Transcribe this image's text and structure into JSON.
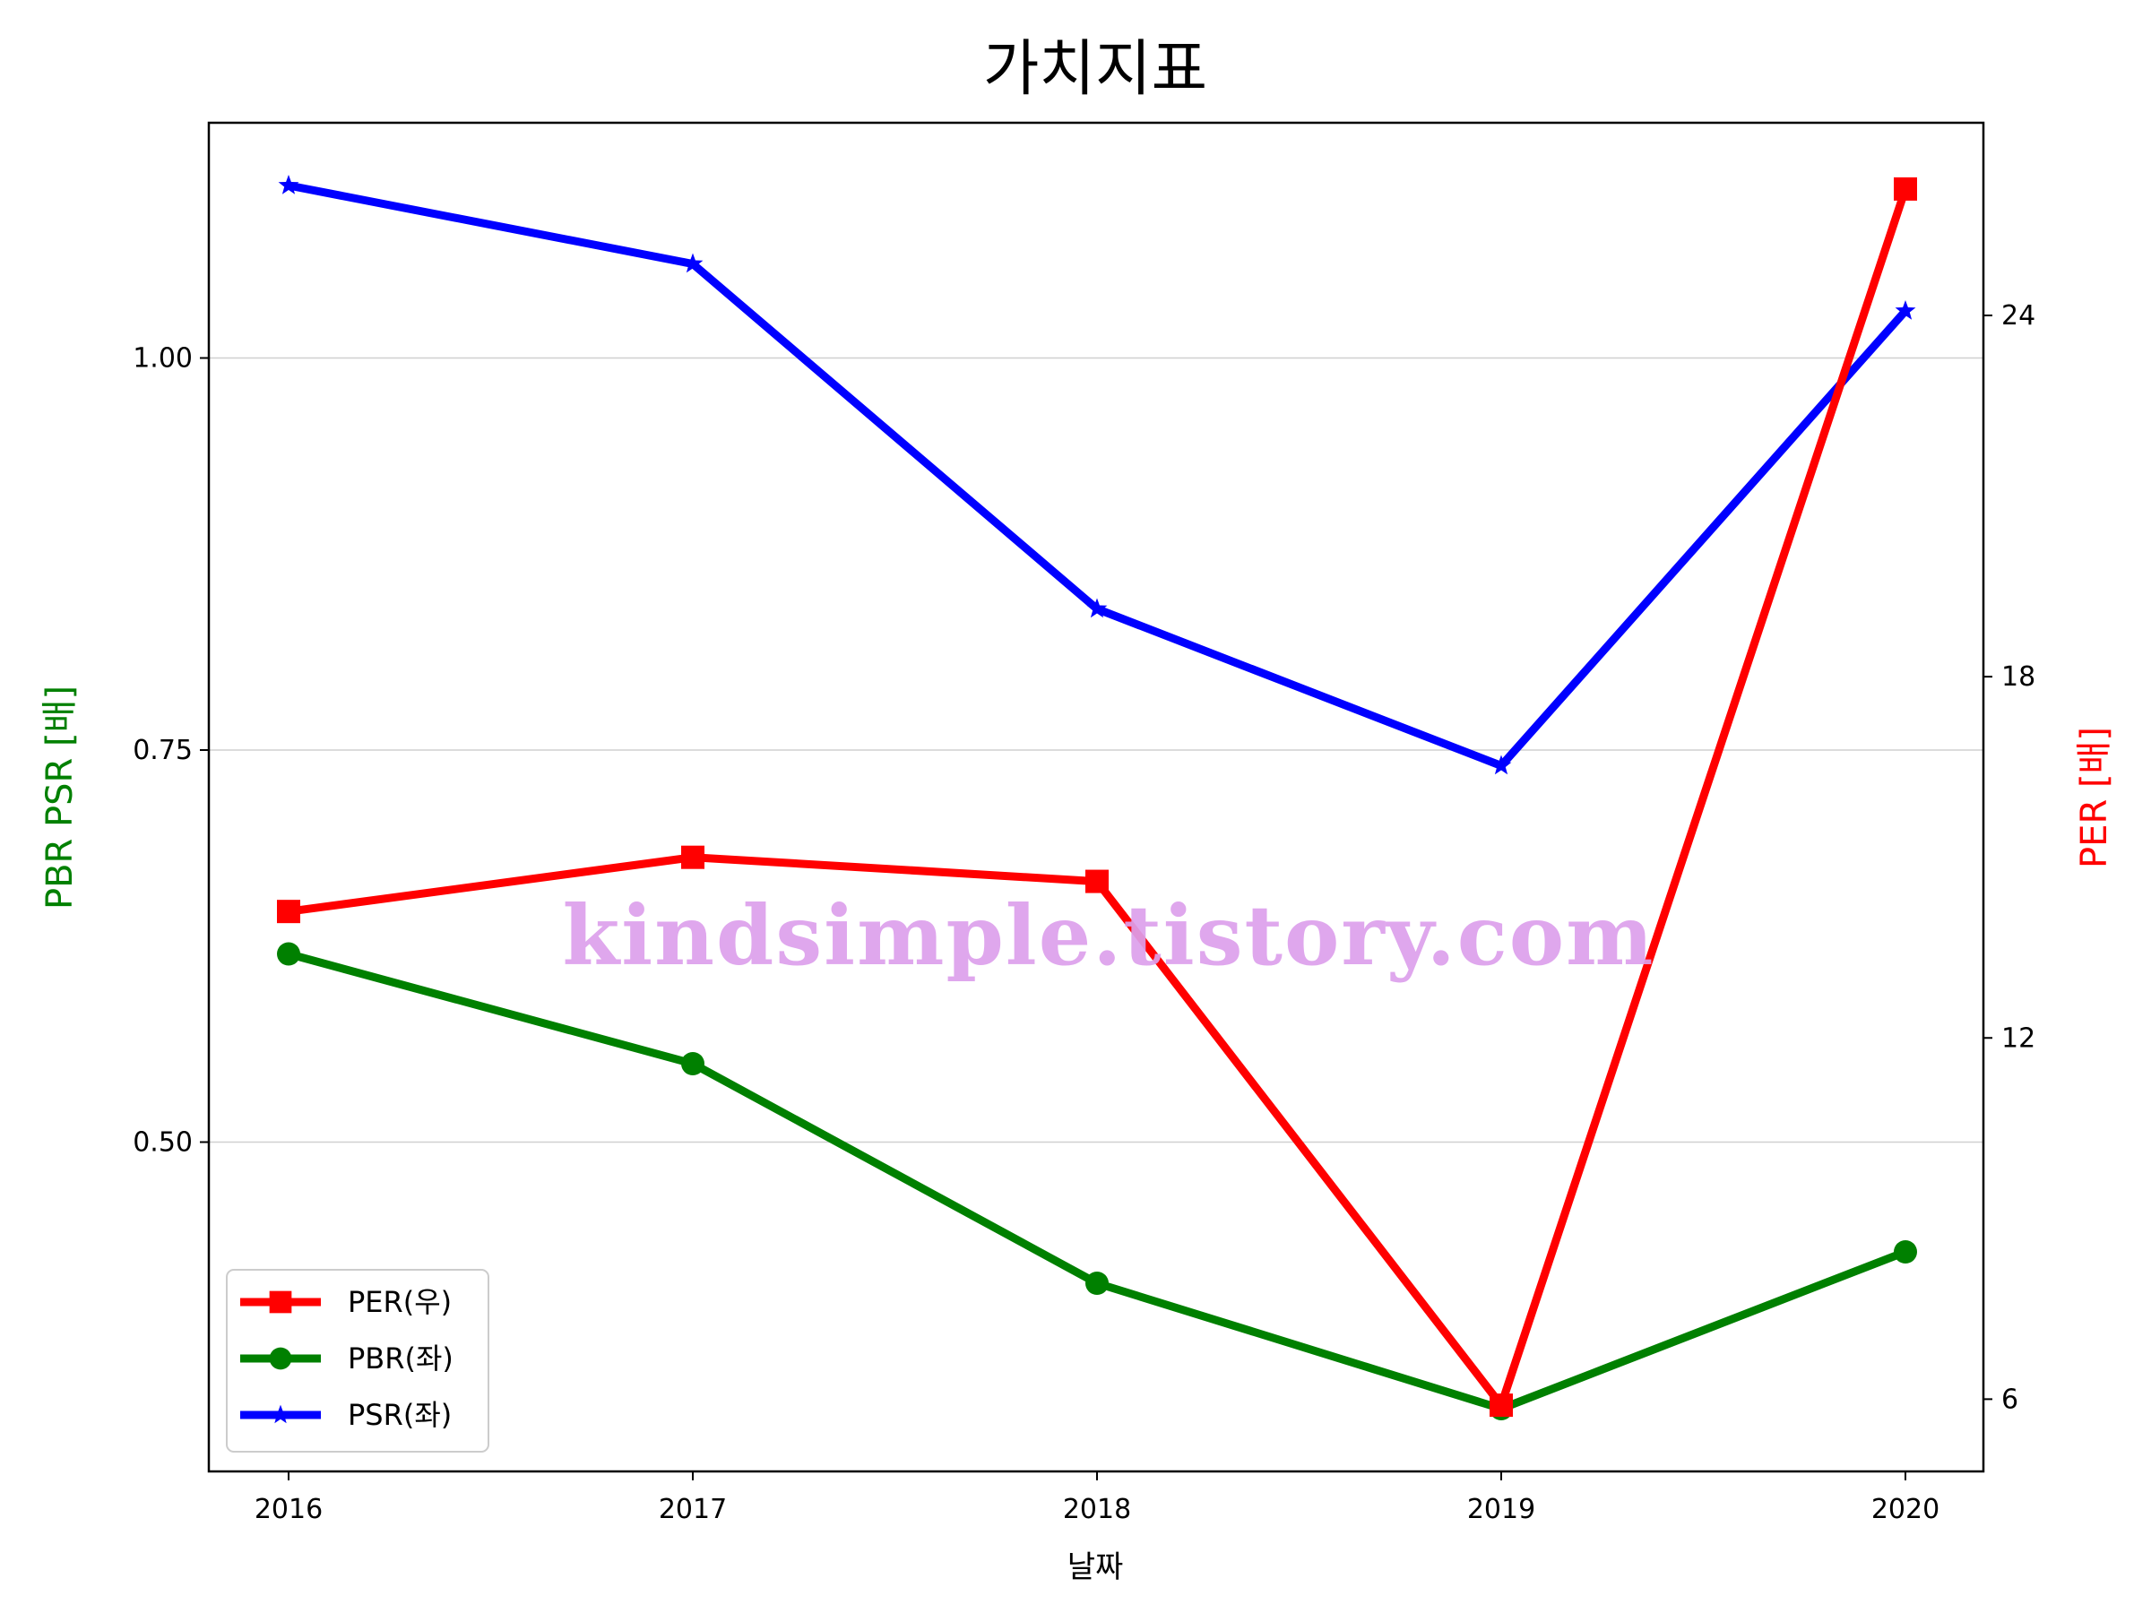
{
  "chart_data": {
    "type": "line",
    "title": "가치지표",
    "xlabel": "날짜",
    "ylabel_left": "PBR PSR [배]",
    "ylabel_right": "PER [배]",
    "categories": [
      "2016",
      "2017",
      "2018",
      "2019",
      "2020"
    ],
    "left_axis": {
      "ylim": [
        0.29,
        1.15
      ],
      "ticks": [
        0.5,
        0.75,
        1.0
      ],
      "tick_labels": [
        "0.50",
        "0.75",
        "1.00"
      ],
      "color": "#008000"
    },
    "right_axis": {
      "ylim": [
        4.8,
        27.2
      ],
      "ticks": [
        6,
        12,
        18,
        24
      ],
      "tick_labels": [
        "6",
        "12",
        "18",
        "24"
      ],
      "color": "#ff0000"
    },
    "grid": "horizontal (left axis)",
    "legend_position": "lower-left",
    "series": [
      {
        "name": "PER(우)",
        "axis": "right",
        "color": "#ff0000",
        "marker": "square",
        "values": [
          14.1,
          15.0,
          14.6,
          5.9,
          26.1
        ]
      },
      {
        "name": "PBR(좌)",
        "axis": "left",
        "color": "#008000",
        "marker": "circle",
        "values": [
          0.62,
          0.55,
          0.41,
          0.33,
          0.43
        ]
      },
      {
        "name": "PSR(좌)",
        "axis": "left",
        "color": "#0000ff",
        "marker": "star",
        "values": [
          1.11,
          1.06,
          0.84,
          0.74,
          1.03
        ]
      }
    ],
    "watermark": "kindsimple.tistory.com"
  }
}
